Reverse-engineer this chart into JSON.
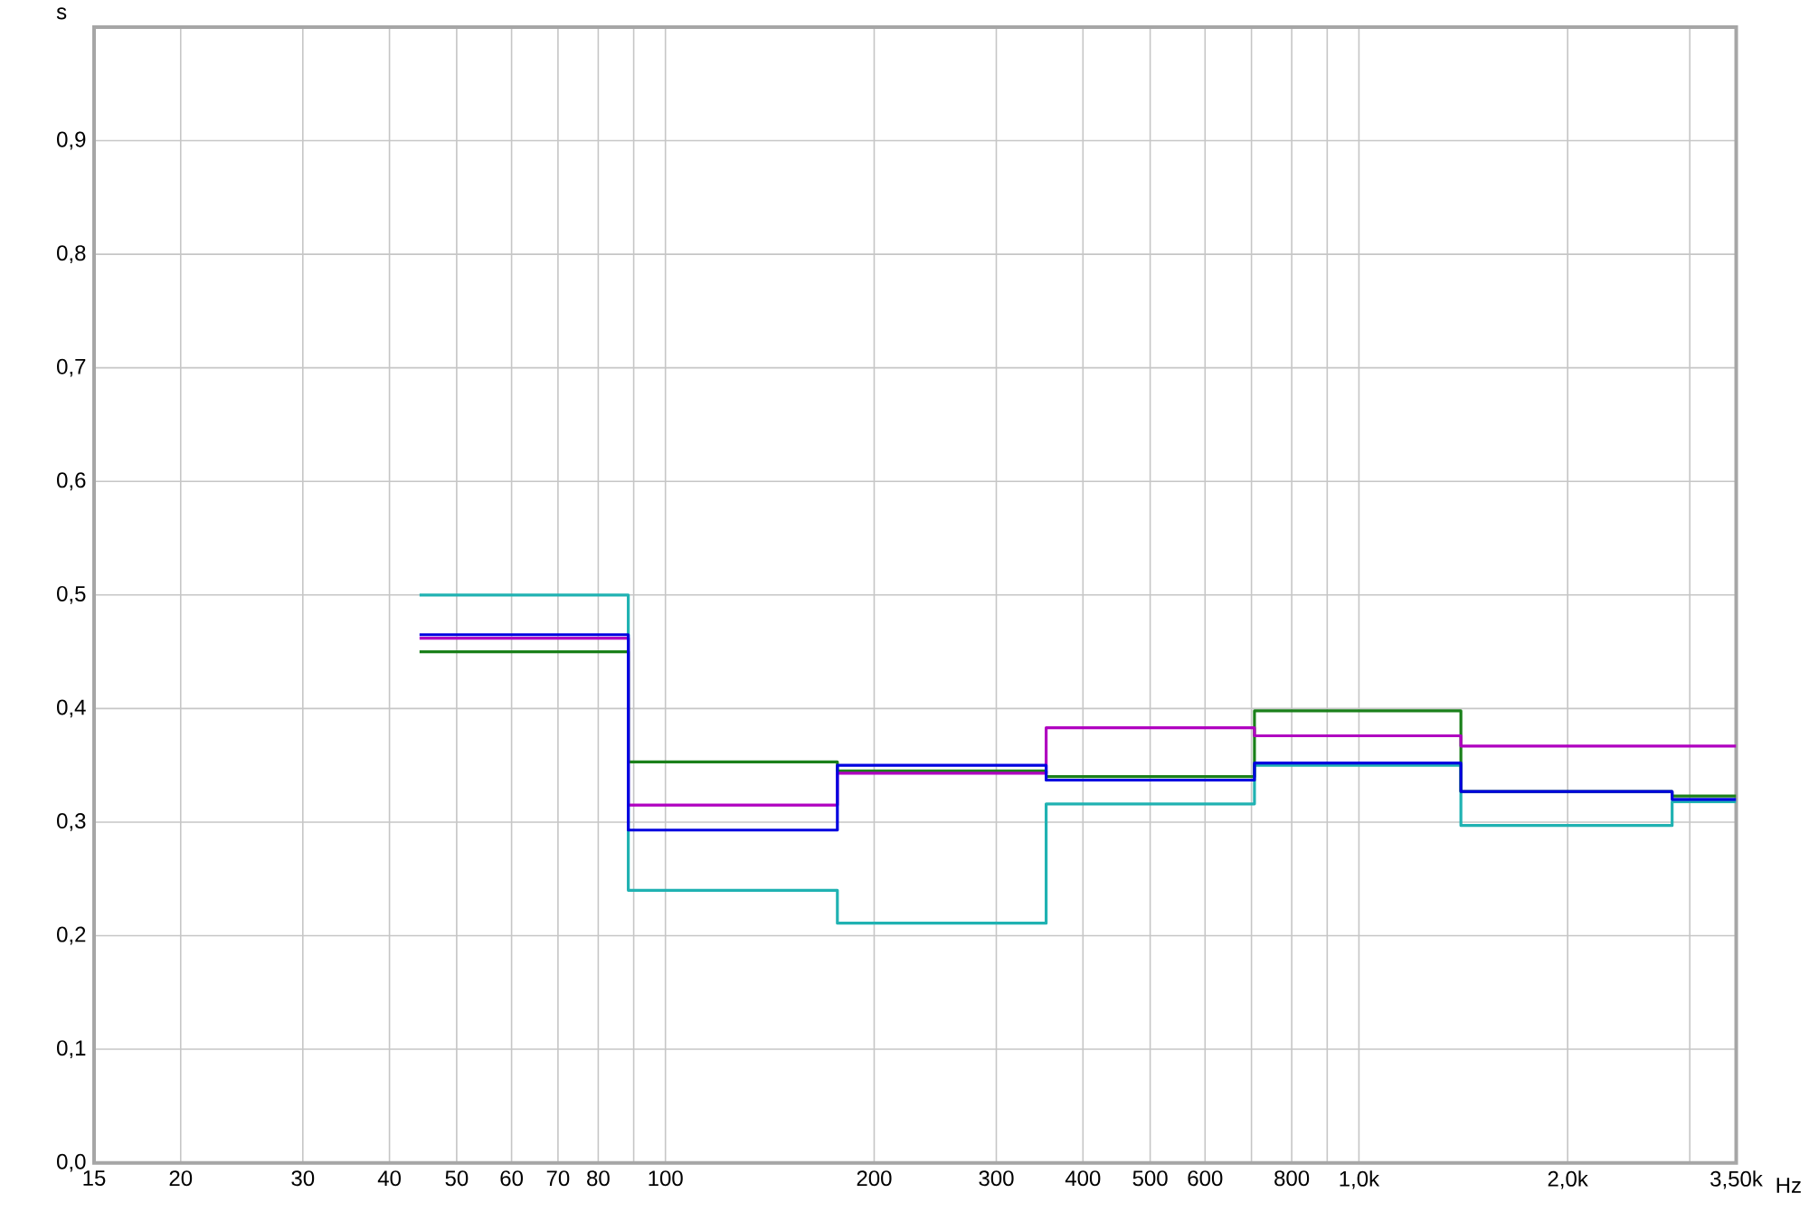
{
  "chart_data": {
    "type": "step",
    "xlabel": "Hz",
    "ylabel": "s",
    "log": "x",
    "grid": true,
    "marker": "none",
    "line_style": "solid",
    "xlim": [
      15,
      3500
    ],
    "ylim": [
      0,
      1.0
    ],
    "xticks": [
      15,
      20,
      30,
      40,
      50,
      60,
      70,
      80,
      {
        "value": 90,
        "label": null
      },
      100,
      200,
      300,
      400,
      500,
      600,
      {
        "value": 700,
        "label": null
      },
      800,
      {
        "value": 900,
        "label": null
      },
      {
        "value": 1000,
        "label": "1,0k"
      },
      {
        "value": 2000,
        "label": "2,0k"
      },
      {
        "value": 3000,
        "label": null
      },
      {
        "value": 3500,
        "label": "3,50k"
      }
    ],
    "yticks": [
      {
        "value": 0,
        "label": "0,0"
      },
      {
        "value": 0.1,
        "label": "0,1"
      },
      {
        "value": 0.2,
        "label": "0,2"
      },
      {
        "value": 0.3,
        "label": "0,3"
      },
      {
        "value": 0.4,
        "label": "0,4"
      },
      {
        "value": 0.5,
        "label": "0,5"
      },
      {
        "value": 0.6,
        "label": "0,6"
      },
      {
        "value": 0.7,
        "label": "0,7"
      },
      {
        "value": 0.8,
        "label": "0,8"
      },
      {
        "value": 0.9,
        "label": "0,9"
      }
    ],
    "x": [
      44.2,
      88.4,
      177,
      354,
      707,
      1403,
      2829,
      3500
    ],
    "series": [
      {
        "color": "#20b2b2",
        "values": [
          0.5,
          0.24,
          0.211,
          0.316,
          0.35,
          0.297,
          0.318,
          0.318
        ]
      },
      {
        "color": "#1a801a",
        "values": [
          0.45,
          0.353,
          0.345,
          0.34,
          0.398,
          0.327,
          0.323,
          0.323
        ]
      },
      {
        "color": "#b000c0",
        "values": [
          0.462,
          0.315,
          0.343,
          0.383,
          0.376,
          0.367,
          0.367,
          0.367
        ]
      },
      {
        "color": "#0000e0",
        "values": [
          0.465,
          0.293,
          0.35,
          0.337,
          0.352,
          0.327,
          0.32,
          0.32
        ]
      }
    ]
  }
}
